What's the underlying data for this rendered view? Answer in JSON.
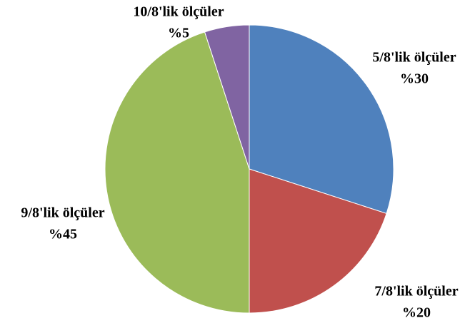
{
  "chart_data": {
    "type": "pie",
    "categories": [
      "5/8'lik ölçüler",
      "7/8'lik ölçüler",
      "9/8'lik ölçüler",
      "10/8'lik ölçüler"
    ],
    "values": [
      30,
      20,
      45,
      5
    ],
    "value_labels": [
      "%30",
      "%20",
      "%45",
      "%5"
    ],
    "colors": [
      "#4f81bd",
      "#c0504d",
      "#9bbb59",
      "#8064a2"
    ]
  }
}
